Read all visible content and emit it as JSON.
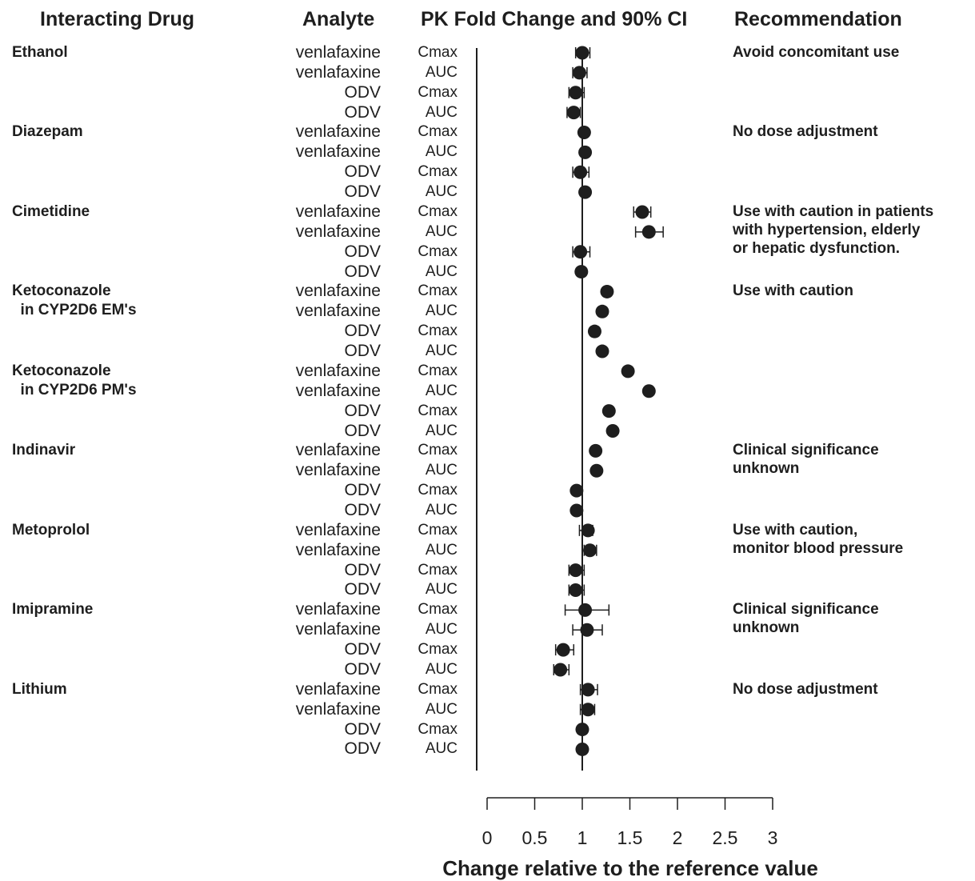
{
  "chart_data": {
    "type": "scatter",
    "subtype": "forest-plot",
    "headers": {
      "drug": "Interacting Drug",
      "analyte": "Analyte",
      "effect": "PK Fold Change and 90% CI",
      "recommendation": "Recommendation"
    },
    "xlabel": "Change relative to the reference value",
    "xlim": [
      0,
      3
    ],
    "xticks": [
      "0",
      "0.5",
      "1",
      "1.5",
      "2",
      "2.5",
      "3"
    ],
    "reference_line": 1,
    "groups": [
      {
        "drug": "Ethanol",
        "recommendation": "Avoid concomitant use",
        "rows": [
          {
            "analyte": "venlafaxine",
            "param": "Cmax",
            "value": 1.0,
            "ci": [
              0.93,
              1.08
            ]
          },
          {
            "analyte": "venlafaxine",
            "param": "AUC",
            "value": 0.97,
            "ci": [
              0.9,
              1.05
            ]
          },
          {
            "analyte": "ODV",
            "param": "Cmax",
            "value": 0.93,
            "ci": [
              0.86,
              1.02
            ]
          },
          {
            "analyte": "ODV",
            "param": "AUC",
            "value": 0.91,
            "ci": [
              0.84,
              0.98
            ]
          }
        ]
      },
      {
        "drug": "Diazepam",
        "recommendation": "No dose adjustment",
        "rows": [
          {
            "analyte": "venlafaxine",
            "param": "Cmax",
            "value": 1.02,
            "ci": [
              null,
              null
            ]
          },
          {
            "analyte": "venlafaxine",
            "param": "AUC",
            "value": 1.03,
            "ci": [
              null,
              null
            ]
          },
          {
            "analyte": "ODV",
            "param": "Cmax",
            "value": 0.98,
            "ci": [
              0.9,
              1.07
            ]
          },
          {
            "analyte": "ODV",
            "param": "AUC",
            "value": 1.03,
            "ci": [
              null,
              null
            ]
          }
        ]
      },
      {
        "drug": "Cimetidine",
        "recommendation": "Use with caution in patients\nwith hypertension, elderly\nor hepatic dysfunction.",
        "rows": [
          {
            "analyte": "venlafaxine",
            "param": "Cmax",
            "value": 1.63,
            "ci": [
              1.54,
              1.72
            ]
          },
          {
            "analyte": "venlafaxine",
            "param": "AUC",
            "value": 1.7,
            "ci": [
              1.56,
              1.85
            ]
          },
          {
            "analyte": "ODV",
            "param": "Cmax",
            "value": 0.98,
            "ci": [
              0.9,
              1.08
            ]
          },
          {
            "analyte": "ODV",
            "param": "AUC",
            "value": 0.99,
            "ci": [
              null,
              null
            ]
          }
        ]
      },
      {
        "drug": "Ketoconazole\n  in CYP2D6 EM's",
        "recommendation": "Use with caution",
        "rows": [
          {
            "analyte": "venlafaxine",
            "param": "Cmax",
            "value": 1.26,
            "ci": [
              null,
              null
            ]
          },
          {
            "analyte": "venlafaxine",
            "param": "AUC",
            "value": 1.21,
            "ci": [
              null,
              null
            ]
          },
          {
            "analyte": "ODV",
            "param": "Cmax",
            "value": 1.13,
            "ci": [
              null,
              null
            ]
          },
          {
            "analyte": "ODV",
            "param": "AUC",
            "value": 1.21,
            "ci": [
              null,
              null
            ]
          }
        ]
      },
      {
        "drug": "Ketoconazole\n  in CYP2D6 PM's",
        "recommendation": "",
        "rows": [
          {
            "analyte": "venlafaxine",
            "param": "Cmax",
            "value": 1.48,
            "ci": [
              null,
              null
            ]
          },
          {
            "analyte": "venlafaxine",
            "param": "AUC",
            "value": 1.7,
            "ci": [
              null,
              null
            ]
          },
          {
            "analyte": "ODV",
            "param": "Cmax",
            "value": 1.28,
            "ci": [
              null,
              null
            ]
          },
          {
            "analyte": "ODV",
            "param": "AUC",
            "value": 1.32,
            "ci": [
              null,
              null
            ]
          }
        ]
      },
      {
        "drug": "Indinavir",
        "recommendation": "Clinical significance\nunknown",
        "rows": [
          {
            "analyte": "venlafaxine",
            "param": "Cmax",
            "value": 1.14,
            "ci": [
              null,
              null
            ]
          },
          {
            "analyte": "venlafaxine",
            "param": "AUC",
            "value": 1.15,
            "ci": [
              null,
              null
            ]
          },
          {
            "analyte": "ODV",
            "param": "Cmax",
            "value": 0.94,
            "ci": [
              null,
              null
            ]
          },
          {
            "analyte": "ODV",
            "param": "AUC",
            "value": 0.94,
            "ci": [
              null,
              null
            ]
          }
        ]
      },
      {
        "drug": "Metoprolol",
        "recommendation": "Use with caution,\nmonitor blood pressure",
        "rows": [
          {
            "analyte": "venlafaxine",
            "param": "Cmax",
            "value": 1.06,
            "ci": [
              0.97,
              1.11
            ]
          },
          {
            "analyte": "venlafaxine",
            "param": "AUC",
            "value": 1.08,
            "ci": [
              1.02,
              1.15
            ]
          },
          {
            "analyte": "ODV",
            "param": "Cmax",
            "value": 0.93,
            "ci": [
              0.86,
              1.02
            ]
          },
          {
            "analyte": "ODV",
            "param": "AUC",
            "value": 0.93,
            "ci": [
              0.86,
              1.02
            ]
          }
        ]
      },
      {
        "drug": "Imipramine",
        "recommendation": "Clinical significance\nunknown",
        "rows": [
          {
            "analyte": "venlafaxine",
            "param": "Cmax",
            "value": 1.03,
            "ci": [
              0.82,
              1.28
            ]
          },
          {
            "analyte": "venlafaxine",
            "param": "AUC",
            "value": 1.05,
            "ci": [
              0.9,
              1.21
            ]
          },
          {
            "analyte": "ODV",
            "param": "Cmax",
            "value": 0.8,
            "ci": [
              0.72,
              0.91
            ]
          },
          {
            "analyte": "ODV",
            "param": "AUC",
            "value": 0.77,
            "ci": [
              0.7,
              0.86
            ]
          }
        ]
      },
      {
        "drug": "Lithium",
        "recommendation": "No dose adjustment",
        "rows": [
          {
            "analyte": "venlafaxine",
            "param": "Cmax",
            "value": 1.06,
            "ci": [
              0.98,
              1.16
            ]
          },
          {
            "analyte": "venlafaxine",
            "param": "AUC",
            "value": 1.06,
            "ci": [
              0.98,
              1.13
            ]
          },
          {
            "analyte": "ODV",
            "param": "Cmax",
            "value": 1.0,
            "ci": [
              null,
              null
            ]
          },
          {
            "analyte": "ODV",
            "param": "AUC",
            "value": 1.0,
            "ci": [
              null,
              null
            ]
          }
        ]
      }
    ]
  },
  "colors": {
    "ink": "#1e1e1e",
    "background": "#ffffff"
  }
}
